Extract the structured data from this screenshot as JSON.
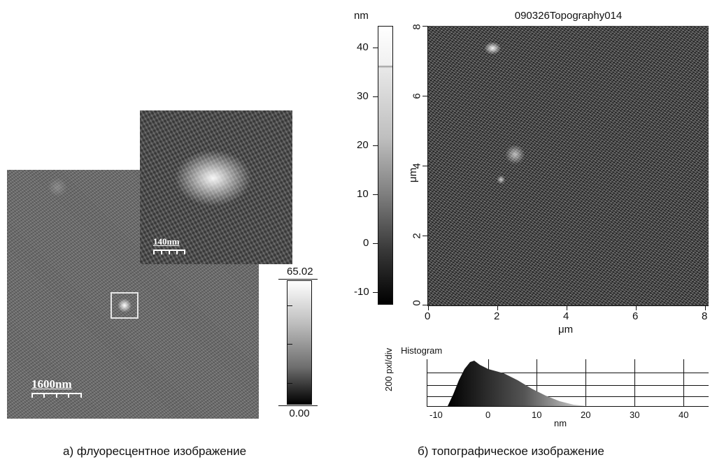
{
  "panel_a": {
    "inset_scalebar_label": "140nm",
    "main_scalebar_label": "1600nm",
    "colorbar": {
      "max_label": "65.02",
      "min_label": "0.00"
    },
    "caption": "а) флуоресцентное изображение"
  },
  "panel_b": {
    "title": "090326Topography014",
    "colorbar": {
      "unit": "nm",
      "tick_labels": [
        "40",
        "30",
        "20",
        "10",
        "0",
        "-10"
      ]
    },
    "y_axis": {
      "label": "μm",
      "tick_labels": [
        "8",
        "6",
        "4",
        "2",
        "0"
      ]
    },
    "x_axis": {
      "label": "μm",
      "tick_labels": [
        "0",
        "2",
        "4",
        "6",
        "8"
      ]
    },
    "histogram": {
      "title": "Histogram",
      "y_label": "200 pxl/div",
      "x_label": "nm",
      "x_tick_labels": [
        "-10",
        "0",
        "10",
        "20",
        "30",
        "40"
      ]
    },
    "caption": "б) топографическое изображение"
  },
  "colors": {
    "background": "#ffffff",
    "axis": "#111111",
    "scalebar": "#ffffff"
  }
}
